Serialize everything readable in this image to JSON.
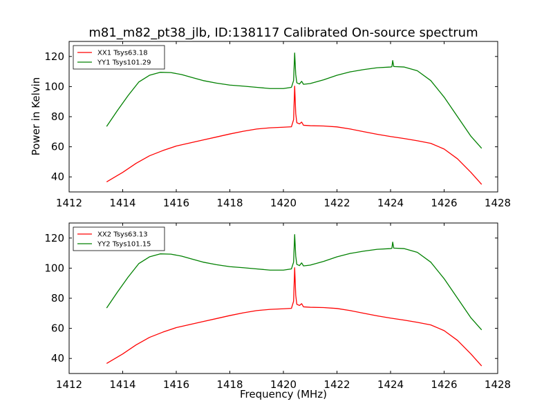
{
  "colors": {
    "xx": "#ff0000",
    "yy": "#008000",
    "frame": "#000000"
  },
  "chart_data": {
    "type": "line",
    "title": "m81_m82_pt38_jlb, ID:138117 Calibrated On-source spectrum",
    "panels": [
      {
        "xlabel": "",
        "ylabel": "Power in Kelvin",
        "xlim": [
          1412,
          1428
        ],
        "ylim": [
          30,
          130
        ],
        "xticks": [
          1412,
          1414,
          1416,
          1418,
          1420,
          1422,
          1424,
          1426,
          1428
        ],
        "yticks": [
          40,
          60,
          80,
          100,
          120
        ],
        "grid": false,
        "legend": "top-left",
        "series": [
          {
            "name": "XX1 Tsys63.18",
            "color": "#ff0000",
            "points": [
              [
                1413.4,
                36.7
              ],
              [
                1414.0,
                43
              ],
              [
                1414.5,
                49
              ],
              [
                1415.0,
                54
              ],
              [
                1415.5,
                57.5
              ],
              [
                1416.0,
                60.5
              ],
              [
                1416.5,
                62.5
              ],
              [
                1417.0,
                64.5
              ],
              [
                1417.5,
                66.5
              ],
              [
                1418.0,
                68.5
              ],
              [
                1418.5,
                70.3
              ],
              [
                1419.0,
                71.8
              ],
              [
                1419.5,
                72.6
              ],
              [
                1420.0,
                73
              ],
              [
                1420.3,
                73.3
              ],
              [
                1420.38,
                78
              ],
              [
                1420.42,
                100.3
              ],
              [
                1420.46,
                82
              ],
              [
                1420.5,
                76
              ],
              [
                1420.6,
                75.2
              ],
              [
                1420.68,
                76.4
              ],
              [
                1420.75,
                74.3
              ],
              [
                1421.0,
                74
              ],
              [
                1421.5,
                73.8
              ],
              [
                1422.0,
                73.2
              ],
              [
                1422.5,
                71.8
              ],
              [
                1423.0,
                70
              ],
              [
                1423.5,
                68.3
              ],
              [
                1424.0,
                66.8
              ],
              [
                1424.5,
                65.5
              ],
              [
                1425.0,
                64
              ],
              [
                1425.5,
                62.3
              ],
              [
                1426.0,
                58.5
              ],
              [
                1426.5,
                52
              ],
              [
                1427.0,
                43
              ],
              [
                1427.4,
                35
              ]
            ]
          },
          {
            "name": "YY1 Tsys101.29",
            "color": "#008000",
            "points": [
              [
                1413.4,
                73.5
              ],
              [
                1413.8,
                84
              ],
              [
                1414.2,
                94
              ],
              [
                1414.6,
                103
              ],
              [
                1415.0,
                107.5
              ],
              [
                1415.4,
                109.5
              ],
              [
                1415.8,
                109.3
              ],
              [
                1416.2,
                108
              ],
              [
                1416.6,
                106
              ],
              [
                1417.0,
                104
              ],
              [
                1417.5,
                102.3
              ],
              [
                1418.0,
                101
              ],
              [
                1418.5,
                100.3
              ],
              [
                1419.0,
                99.5
              ],
              [
                1419.5,
                98.7
              ],
              [
                1420.0,
                98.7
              ],
              [
                1420.3,
                99.5
              ],
              [
                1420.38,
                104
              ],
              [
                1420.42,
                122.3
              ],
              [
                1420.46,
                108
              ],
              [
                1420.5,
                102.5
              ],
              [
                1420.6,
                101.7
              ],
              [
                1420.68,
                103.5
              ],
              [
                1420.75,
                101.5
              ],
              [
                1421.0,
                102
              ],
              [
                1421.5,
                104.5
              ],
              [
                1422.0,
                107.5
              ],
              [
                1422.5,
                109.8
              ],
              [
                1423.0,
                111.3
              ],
              [
                1423.5,
                112.5
              ],
              [
                1424.0,
                113
              ],
              [
                1424.05,
                113.2
              ],
              [
                1424.08,
                117.3
              ],
              [
                1424.12,
                113.3
              ],
              [
                1424.5,
                113
              ],
              [
                1425.0,
                110.5
              ],
              [
                1425.5,
                104
              ],
              [
                1426.0,
                93
              ],
              [
                1426.5,
                80
              ],
              [
                1427.0,
                67
              ],
              [
                1427.4,
                59
              ]
            ]
          }
        ]
      },
      {
        "xlabel": "Frequency (MHz)",
        "ylabel": "",
        "xlim": [
          1412,
          1428
        ],
        "ylim": [
          30,
          130
        ],
        "xticks": [
          1412,
          1414,
          1416,
          1418,
          1420,
          1422,
          1424,
          1426,
          1428
        ],
        "yticks": [
          40,
          60,
          80,
          100,
          120
        ],
        "grid": false,
        "legend": "top-left",
        "series": [
          {
            "name": "XX2 Tsys63.13",
            "color": "#ff0000",
            "points": [
              [
                1413.4,
                36.7
              ],
              [
                1414.0,
                43
              ],
              [
                1414.5,
                49
              ],
              [
                1415.0,
                54
              ],
              [
                1415.5,
                57.5
              ],
              [
                1416.0,
                60.5
              ],
              [
                1416.5,
                62.5
              ],
              [
                1417.0,
                64.5
              ],
              [
                1417.5,
                66.5
              ],
              [
                1418.0,
                68.5
              ],
              [
                1418.5,
                70.3
              ],
              [
                1419.0,
                71.8
              ],
              [
                1419.5,
                72.6
              ],
              [
                1420.0,
                73
              ],
              [
                1420.3,
                73.3
              ],
              [
                1420.38,
                78
              ],
              [
                1420.42,
                100.3
              ],
              [
                1420.46,
                82
              ],
              [
                1420.5,
                76
              ],
              [
                1420.6,
                75.2
              ],
              [
                1420.68,
                76.4
              ],
              [
                1420.75,
                74.3
              ],
              [
                1421.0,
                74
              ],
              [
                1421.5,
                73.8
              ],
              [
                1422.0,
                73.2
              ],
              [
                1422.5,
                71.8
              ],
              [
                1423.0,
                70
              ],
              [
                1423.5,
                68.3
              ],
              [
                1424.0,
                66.8
              ],
              [
                1424.5,
                65.5
              ],
              [
                1425.0,
                64
              ],
              [
                1425.5,
                62.3
              ],
              [
                1426.0,
                58.5
              ],
              [
                1426.5,
                52
              ],
              [
                1427.0,
                43
              ],
              [
                1427.4,
                35
              ]
            ]
          },
          {
            "name": "YY2 Tsys101.15",
            "color": "#008000",
            "points": [
              [
                1413.4,
                73.5
              ],
              [
                1413.8,
                84
              ],
              [
                1414.2,
                94
              ],
              [
                1414.6,
                103
              ],
              [
                1415.0,
                107.5
              ],
              [
                1415.4,
                109.5
              ],
              [
                1415.8,
                109.3
              ],
              [
                1416.2,
                108
              ],
              [
                1416.6,
                106
              ],
              [
                1417.0,
                104
              ],
              [
                1417.5,
                102.3
              ],
              [
                1418.0,
                101
              ],
              [
                1418.5,
                100.3
              ],
              [
                1419.0,
                99.5
              ],
              [
                1419.5,
                98.7
              ],
              [
                1420.0,
                98.7
              ],
              [
                1420.3,
                99.5
              ],
              [
                1420.38,
                104
              ],
              [
                1420.42,
                122.3
              ],
              [
                1420.46,
                108
              ],
              [
                1420.5,
                102.5
              ],
              [
                1420.6,
                101.7
              ],
              [
                1420.68,
                103.5
              ],
              [
                1420.75,
                101.5
              ],
              [
                1421.0,
                102
              ],
              [
                1421.5,
                104.5
              ],
              [
                1422.0,
                107.5
              ],
              [
                1422.5,
                109.8
              ],
              [
                1423.0,
                111.3
              ],
              [
                1423.5,
                112.5
              ],
              [
                1424.0,
                113
              ],
              [
                1424.05,
                113.2
              ],
              [
                1424.08,
                117.3
              ],
              [
                1424.12,
                113.3
              ],
              [
                1424.5,
                113
              ],
              [
                1425.0,
                110.5
              ],
              [
                1425.5,
                104
              ],
              [
                1426.0,
                93
              ],
              [
                1426.5,
                80
              ],
              [
                1427.0,
                67
              ],
              [
                1427.4,
                59
              ]
            ]
          }
        ]
      }
    ]
  }
}
